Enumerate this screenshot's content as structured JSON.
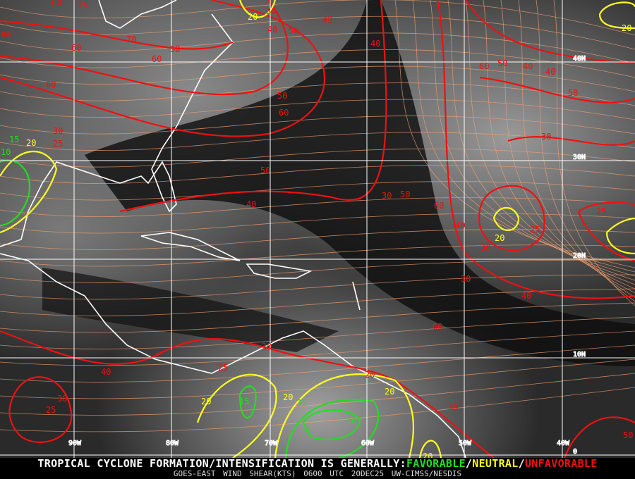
{
  "colors": {
    "favorable": "#22dd22",
    "neutral": "#ffff22",
    "unfavorable": "#ee1111",
    "streamline": "#f0a070",
    "coast": "#ffffff",
    "grid": "#ffffff"
  },
  "grid": {
    "longitudes": [
      "90W",
      "80W",
      "70W",
      "60W",
      "50W",
      "40W"
    ],
    "latitudes": [
      "40N",
      "30N",
      "20N",
      "10N",
      "0"
    ]
  },
  "contour_labels": {
    "unfavorable": [
      "60",
      "70",
      "80",
      "60",
      "70",
      "50",
      "60",
      "60",
      "30",
      "25",
      "30",
      "40",
      "50",
      "40",
      "40",
      "50",
      "60",
      "50",
      "40",
      "30",
      "50",
      "60",
      "40",
      "30",
      "25",
      "60",
      "50",
      "40",
      "40",
      "50",
      "30",
      "25",
      "30",
      "40",
      "60",
      "30",
      "25",
      "40",
      "30",
      "25",
      "20",
      "30",
      "50"
    ],
    "neutral": [
      "20",
      "20",
      "20",
      "20",
      "20",
      "20",
      "20",
      "20"
    ],
    "favorable": [
      "15",
      "10",
      "15",
      "15",
      "5",
      "10"
    ]
  },
  "footer": {
    "headline": "TROPICAL CYCLONE FORMATION/INTENSIFICATION IS GENERALLY:",
    "favorable": "FAVORABLE",
    "sep1": "/",
    "neutral": "NEUTRAL",
    "sep2": "/",
    "unfavorable": "UNFAVORABLE",
    "product": "GOES-EAST WIND SHEAR(KTS)",
    "time": "0600 UTC",
    "date": "20DEC25",
    "credit": "UW-CIMSS/NESDIS"
  }
}
